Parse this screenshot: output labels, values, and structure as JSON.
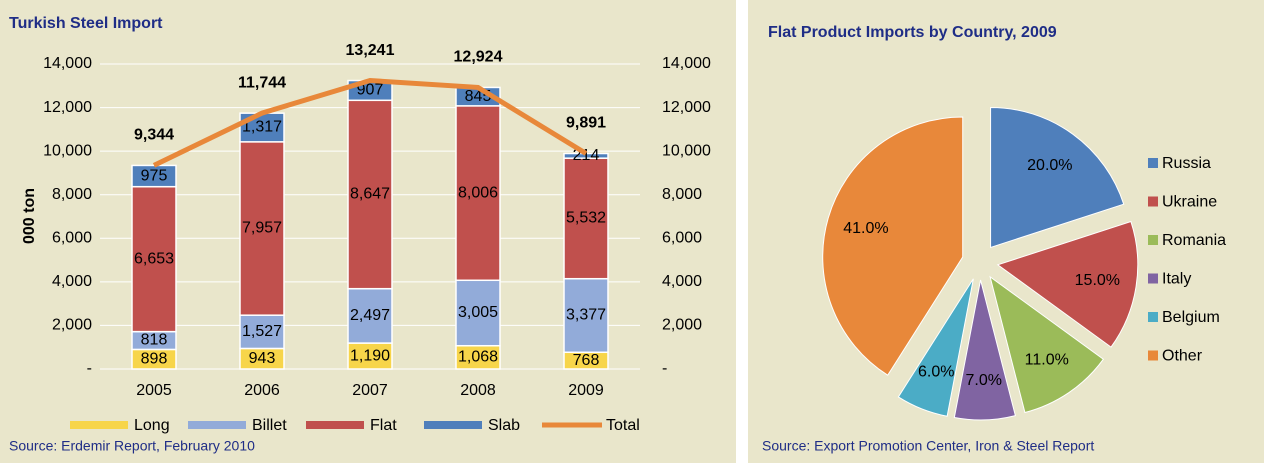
{
  "chart_data": [
    {
      "type": "stacked_bar_line",
      "title": "Turkish Steel Import",
      "y_label": "000 ton",
      "source": "Source: Erdemir Report, February 2010",
      "categories": [
        "2005",
        "2006",
        "2007",
        "2008",
        "2009"
      ],
      "series": [
        {
          "name": "Long",
          "color": "#f7d54a",
          "values": [
            898,
            943,
            1190,
            1068,
            768
          ],
          "value_labels": [
            "898",
            "943",
            "1,190",
            "1,068",
            "768"
          ]
        },
        {
          "name": "Billet",
          "color": "#92abd9",
          "values": [
            818,
            1527,
            2497,
            3005,
            3377
          ],
          "value_labels": [
            "818",
            "1,527",
            "2,497",
            "3,005",
            "3,377"
          ]
        },
        {
          "name": "Flat",
          "color": "#c0504d",
          "values": [
            6653,
            7957,
            8647,
            8006,
            5532
          ],
          "value_labels": [
            "6,653",
            "7,957",
            "8,647",
            "8,006",
            "5,532"
          ]
        },
        {
          "name": "Slab",
          "color": "#4f7fbb",
          "values": [
            975,
            1317,
            907,
            845,
            214
          ],
          "value_labels": [
            "975",
            "1,317",
            "907",
            "845",
            "214"
          ]
        },
        {
          "name": "Total",
          "color": "#e8883a",
          "axis": "y2",
          "values": [
            9344,
            11744,
            13241,
            12924,
            9891
          ],
          "value_labels": [
            "9,344",
            "11,744",
            "13,241",
            "12,924",
            "9,891"
          ]
        }
      ],
      "ylim": [
        0,
        14000
      ],
      "yticks": [
        {
          "value": 0,
          "label": "-"
        },
        {
          "value": 2000,
          "label": "2,000"
        },
        {
          "value": 4000,
          "label": "4,000"
        },
        {
          "value": 6000,
          "label": "6,000"
        },
        {
          "value": 8000,
          "label": "8,000"
        },
        {
          "value": 10000,
          "label": "10,000"
        },
        {
          "value": 12000,
          "label": "12,000"
        },
        {
          "value": 14000,
          "label": "14,000"
        }
      ],
      "y2lim": [
        0,
        14000
      ],
      "y2ticks": [
        {
          "value": 0,
          "label": "-"
        },
        {
          "value": 2000,
          "label": "2,000"
        },
        {
          "value": 4000,
          "label": "4,000"
        },
        {
          "value": 6000,
          "label": "6,000"
        },
        {
          "value": 8000,
          "label": "8,000"
        },
        {
          "value": 10000,
          "label": "10,000"
        },
        {
          "value": 12000,
          "label": "12,000"
        },
        {
          "value": 14000,
          "label": "14,000"
        }
      ],
      "grid": true
    },
    {
      "type": "pie",
      "title": "Flat Product Imports by Country, 2009",
      "source": "Source: Export Promotion Center, Iron & Steel Report",
      "categories": [
        "Russia",
        "Ukraine",
        "Romania",
        "Italy",
        "Belgium",
        "Other"
      ],
      "values": [
        20,
        15,
        11,
        7,
        6,
        41
      ],
      "value_labels": [
        "20.0%",
        "15.0%",
        "11.0%",
        "7.0%",
        "6.0%",
        "41.0%"
      ],
      "colors": [
        "#4f7fbb",
        "#c0504d",
        "#9bbb59",
        "#8064a2",
        "#4bacc6",
        "#e8883a"
      ]
    }
  ]
}
